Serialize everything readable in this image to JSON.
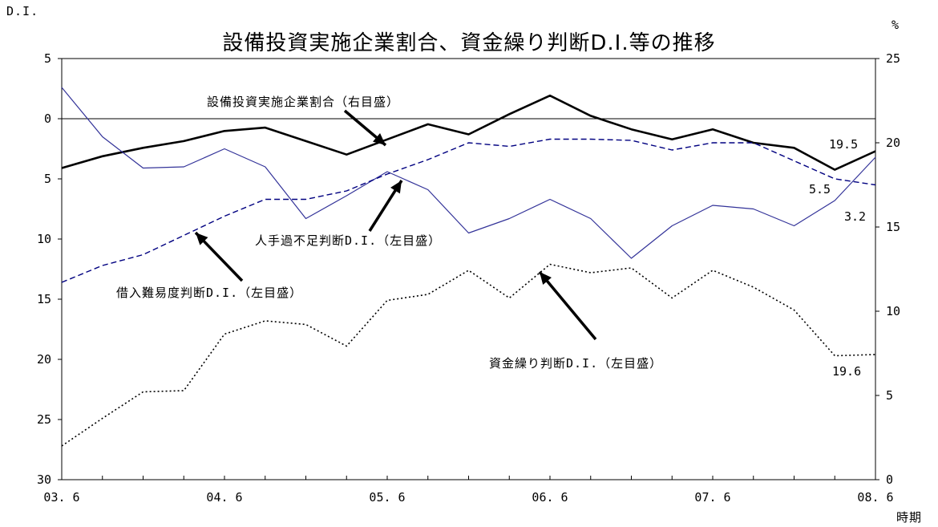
{
  "chart_data": {
    "type": "line",
    "title": "設備投資実施企業割合、資金繰り判断D.I.等の推移",
    "left_axis_label": "D.I.",
    "right_axis_label": "%",
    "xlabel": "時期",
    "left_ylim": [
      -5,
      30
    ],
    "left_inverted": true,
    "left_ticks": [
      -5,
      0,
      5,
      10,
      15,
      20,
      25,
      30
    ],
    "left_tick_labels": [
      "5",
      "0",
      "5",
      "10",
      "15",
      "20",
      "25",
      "30"
    ],
    "right_ylim": [
      0,
      25
    ],
    "right_ticks": [
      0,
      5,
      10,
      15,
      20,
      25
    ],
    "right_tick_labels": [
      "0",
      "5",
      "10",
      "15",
      "20",
      "25"
    ],
    "x_tick_labels": [
      "03. 6",
      "04. 6",
      "05. 6",
      "06. 6",
      "07. 6",
      "08. 6"
    ],
    "x_points": 21,
    "zero_line": 0,
    "grid": false,
    "series": [
      {
        "name": "設備投資実施企業割合（右目盛）",
        "axis": "right",
        "style": "solid-thick",
        "color": "#000000",
        "values": [
          18.5,
          19.2,
          19.7,
          20.1,
          20.7,
          20.9,
          20.1,
          19.3,
          20.2,
          21.1,
          20.5,
          21.7,
          22.8,
          21.6,
          20.8,
          20.2,
          20.8,
          20.0,
          19.7,
          18.4,
          19.5
        ]
      },
      {
        "name": "人手過不足判断D.I.（左目盛）",
        "axis": "left",
        "style": "solid-thin",
        "color": "#333399",
        "values": [
          -2.6,
          1.5,
          4.1,
          4.0,
          2.5,
          4.0,
          8.3,
          6.4,
          4.4,
          5.9,
          9.5,
          8.3,
          6.7,
          8.3,
          11.6,
          8.9,
          7.2,
          7.5,
          8.9,
          6.8,
          3.2
        ]
      },
      {
        "name": "借入難易度判断D.I.（左目盛）",
        "axis": "left",
        "style": "dashed",
        "color": "#000080",
        "values": [
          13.6,
          12.2,
          11.3,
          9.7,
          8.1,
          6.7,
          6.7,
          6.0,
          4.6,
          3.4,
          2.0,
          2.3,
          1.7,
          1.7,
          1.8,
          2.6,
          2.0,
          2.0,
          3.5,
          5.0,
          5.5
        ]
      },
      {
        "name": "資金繰り判断D.I.（左目盛）",
        "axis": "left",
        "style": "dotted",
        "color": "#000000",
        "values": [
          27.2,
          24.9,
          22.7,
          22.6,
          17.9,
          16.8,
          17.1,
          18.9,
          15.1,
          14.6,
          12.6,
          14.9,
          12.1,
          12.8,
          12.4,
          14.9,
          12.6,
          14.0,
          15.9,
          19.7,
          19.6
        ]
      }
    ],
    "annotations": [
      {
        "id": "ann_capex",
        "text": "設備投資実施企業割合（右目盛）"
      },
      {
        "id": "ann_labor",
        "text": "人手過不足判断D.I.（左目盛）"
      },
      {
        "id": "ann_borrow",
        "text": "借入難易度判断D.I.（左目盛）"
      },
      {
        "id": "ann_cash",
        "text": "資金繰り判断D.I.（左目盛）"
      }
    ],
    "end_labels": [
      {
        "series": 0,
        "text": "19.5"
      },
      {
        "series": 2,
        "text": "5.5"
      },
      {
        "series": 1,
        "text": "3.2"
      },
      {
        "series": 3,
        "text": "19.6"
      }
    ]
  }
}
